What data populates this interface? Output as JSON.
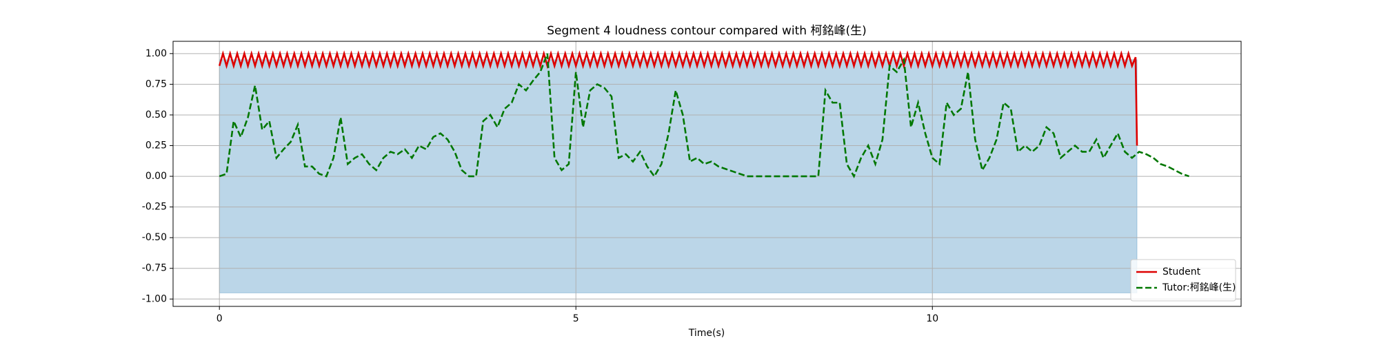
{
  "chart_data": {
    "type": "line",
    "title": "Segment 4 loudness contour compared with 柯銘峰(生)",
    "xlabel": "Time(s)",
    "xlim": [
      -0.65,
      14.33
    ],
    "ylim": [
      -1.06,
      1.1
    ],
    "xticks": [
      0,
      5,
      10
    ],
    "yticks": [
      {
        "value": -1,
        "label": "-1.00"
      },
      {
        "value": -0.75,
        "label": "-0.75"
      },
      {
        "value": -0.5,
        "label": "-0.50"
      },
      {
        "value": -0.25,
        "label": "-0.25"
      },
      {
        "value": 0,
        "label": "0.00"
      },
      {
        "value": 0.25,
        "label": "0.25"
      },
      {
        "value": 0.5,
        "label": "0.50"
      },
      {
        "value": 0.75,
        "label": "0.75"
      },
      {
        "value": 1,
        "label": "1.00"
      }
    ],
    "grid": true,
    "legend": "lower right",
    "waveform": {
      "color": "#1f77b4",
      "x": [
        0,
        12.87
      ],
      "upper": [
        0.95,
        0.95
      ],
      "lower": [
        -0.95,
        -0.95
      ]
    },
    "series": [
      {
        "name": "Student",
        "color": "#dd0000",
        "linestyle": "solid",
        "x": [
          0,
          0.05,
          0.1,
          0.15,
          0.2,
          0.25,
          0.3,
          0.35,
          0.4,
          0.45,
          0.5,
          0.55,
          0.6,
          0.65,
          0.7,
          0.75,
          0.8,
          0.85,
          0.9,
          0.95,
          1,
          1.05,
          1.1,
          1.15,
          1.2,
          1.25,
          1.3,
          1.35,
          1.4,
          1.45,
          1.5,
          1.55,
          1.6,
          1.65,
          1.7,
          1.75,
          1.8,
          1.85,
          1.9,
          1.95,
          2,
          2.05,
          2.1,
          2.15,
          2.2,
          2.25,
          2.3,
          2.35,
          2.4,
          2.45,
          2.5,
          2.55,
          2.6,
          2.65,
          2.7,
          2.75,
          2.8,
          2.85,
          2.9,
          2.95,
          3,
          3.05,
          3.1,
          3.15,
          3.2,
          3.25,
          3.3,
          3.35,
          3.4,
          3.45,
          3.5,
          3.55,
          3.6,
          3.65,
          3.7,
          3.75,
          3.8,
          3.85,
          3.9,
          3.95,
          4,
          4.05,
          4.1,
          4.15,
          4.2,
          4.25,
          4.3,
          4.35,
          4.4,
          4.45,
          4.5,
          4.55,
          4.6,
          4.65,
          4.7,
          4.75,
          4.8,
          4.85,
          4.9,
          4.95,
          5,
          5.05,
          5.1,
          5.15,
          5.2,
          5.25,
          5.3,
          5.35,
          5.4,
          5.45,
          5.5,
          5.55,
          5.6,
          5.65,
          5.7,
          5.75,
          5.8,
          5.85,
          5.9,
          5.95,
          6,
          6.05,
          6.1,
          6.15,
          6.2,
          6.25,
          6.3,
          6.35,
          6.4,
          6.45,
          6.5,
          6.55,
          6.6,
          6.65,
          6.7,
          6.75,
          6.8,
          6.85,
          6.9,
          6.95,
          7,
          7.05,
          7.1,
          7.15,
          7.2,
          7.25,
          7.3,
          7.35,
          7.4,
          7.45,
          7.5,
          7.55,
          7.6,
          7.65,
          7.7,
          7.75,
          7.8,
          7.85,
          7.9,
          7.95,
          8,
          8.05,
          8.1,
          8.15,
          8.2,
          8.25,
          8.3,
          8.35,
          8.4,
          8.45,
          8.5,
          8.55,
          8.6,
          8.65,
          8.7,
          8.75,
          8.8,
          8.85,
          8.9,
          8.95,
          9,
          9.05,
          9.1,
          9.15,
          9.2,
          9.25,
          9.3,
          9.35,
          9.4,
          9.45,
          9.5,
          9.55,
          9.6,
          9.65,
          9.7,
          9.75,
          9.8,
          9.85,
          9.9,
          9.95,
          10,
          10.05,
          10.1,
          10.15,
          10.2,
          10.25,
          10.3,
          10.35,
          10.4,
          10.45,
          10.5,
          10.55,
          10.6,
          10.65,
          10.7,
          10.75,
          10.8,
          10.85,
          10.9,
          10.95,
          11,
          11.05,
          11.1,
          11.15,
          11.2,
          11.25,
          11.3,
          11.35,
          11.4,
          11.45,
          11.5,
          11.55,
          11.6,
          11.65,
          11.7,
          11.75,
          11.8,
          11.85,
          11.9,
          11.95,
          12,
          12.05,
          12.1,
          12.15,
          12.2,
          12.25,
          12.3,
          12.35,
          12.4,
          12.45,
          12.5,
          12.55,
          12.6,
          12.65,
          12.7,
          12.75,
          12.8,
          12.85,
          12.87
        ],
        "values": [
          0.9,
          1,
          0.9,
          1,
          0.9,
          1,
          0.9,
          1,
          0.9,
          1,
          0.9,
          1,
          0.9,
          1,
          0.9,
          1,
          0.9,
          1,
          0.9,
          1,
          0.9,
          1,
          0.9,
          1,
          0.9,
          1,
          0.9,
          1,
          0.9,
          1,
          0.9,
          1,
          0.9,
          1,
          0.9,
          1,
          0.9,
          1,
          0.9,
          1,
          0.9,
          1,
          0.9,
          1,
          0.9,
          1,
          0.9,
          1,
          0.9,
          1,
          0.9,
          1,
          0.9,
          1,
          0.9,
          1,
          0.9,
          1,
          0.9,
          1,
          0.9,
          1,
          0.9,
          1,
          0.9,
          1,
          0.9,
          1,
          0.9,
          1,
          0.9,
          1,
          0.9,
          1,
          0.9,
          1,
          0.9,
          1,
          0.9,
          1,
          0.9,
          1,
          0.9,
          1,
          0.9,
          1,
          0.9,
          1,
          0.9,
          1,
          0.9,
          1,
          0.9,
          1,
          0.9,
          1,
          0.9,
          1,
          0.9,
          1,
          0.9,
          1,
          0.9,
          1,
          0.9,
          1,
          0.9,
          1,
          0.9,
          1,
          0.9,
          1,
          0.9,
          1,
          0.9,
          1,
          0.9,
          1,
          0.9,
          1,
          0.9,
          1,
          0.9,
          1,
          0.9,
          1,
          0.9,
          1,
          0.9,
          1,
          0.9,
          1,
          0.9,
          1,
          0.9,
          1,
          0.9,
          1,
          0.9,
          1,
          0.9,
          1,
          0.9,
          1,
          0.9,
          1,
          0.9,
          1,
          0.9,
          1,
          0.9,
          1,
          0.9,
          1,
          0.9,
          1,
          0.9,
          1,
          0.9,
          1,
          0.9,
          1,
          0.9,
          1,
          0.9,
          1,
          0.9,
          1,
          0.9,
          1,
          0.9,
          1,
          0.9,
          1,
          0.9,
          1,
          0.9,
          1,
          0.9,
          1,
          0.9,
          1,
          0.9,
          1,
          0.9,
          1,
          0.9,
          1,
          0.9,
          1,
          0.9,
          1,
          0.9,
          1,
          0.9,
          1,
          0.9,
          1,
          0.9,
          1,
          0.9,
          1,
          0.9,
          1,
          0.9,
          1,
          0.9,
          1,
          0.9,
          1,
          0.9,
          1,
          0.9,
          1,
          0.9,
          1,
          0.9,
          1,
          0.9,
          1,
          0.9,
          1,
          0.9,
          1,
          0.9,
          1,
          0.9,
          1,
          0.9,
          1,
          0.9,
          1,
          0.9,
          1,
          0.9,
          1,
          0.9,
          1,
          0.9,
          1,
          0.9,
          1,
          0.9,
          1,
          0.9,
          1,
          0.9,
          1,
          0.9,
          1,
          0.9,
          1,
          0.9,
          1,
          0.9,
          1,
          0.9,
          0.97,
          0.25
        ]
      },
      {
        "name": "Tutor:柯銘峰(生)",
        "color": "#007700",
        "linestyle": "dashed",
        "x": [
          0,
          0.1,
          0.2,
          0.3,
          0.4,
          0.5,
          0.6,
          0.7,
          0.8,
          0.9,
          1,
          1.1,
          1.2,
          1.3,
          1.4,
          1.5,
          1.6,
          1.7,
          1.8,
          1.9,
          2,
          2.1,
          2.2,
          2.3,
          2.4,
          2.5,
          2.6,
          2.7,
          2.8,
          2.9,
          3,
          3.1,
          3.2,
          3.3,
          3.4,
          3.5,
          3.6,
          3.7,
          3.8,
          3.9,
          4,
          4.1,
          4.2,
          4.3,
          4.4,
          4.5,
          4.6,
          4.7,
          4.8,
          4.9,
          5,
          5.1,
          5.2,
          5.3,
          5.4,
          5.5,
          5.6,
          5.7,
          5.8,
          5.9,
          6,
          6.1,
          6.2,
          6.3,
          6.4,
          6.5,
          6.6,
          6.7,
          6.8,
          6.9,
          7,
          7.1,
          7.2,
          7.3,
          7.4,
          7.5,
          7.6,
          7.7,
          7.8,
          7.9,
          8,
          8.1,
          8.2,
          8.3,
          8.4,
          8.5,
          8.6,
          8.7,
          8.8,
          8.9,
          9,
          9.1,
          9.2,
          9.3,
          9.4,
          9.5,
          9.6,
          9.7,
          9.8,
          9.9,
          10,
          10.1,
          10.2,
          10.3,
          10.4,
          10.5,
          10.6,
          10.7,
          10.8,
          10.9,
          11,
          11.1,
          11.2,
          11.3,
          11.4,
          11.5,
          11.6,
          11.7,
          11.8,
          11.9,
          12,
          12.1,
          12.2,
          12.3,
          12.4,
          12.5,
          12.6,
          12.7,
          12.8,
          12.9,
          13,
          13.1,
          13.2,
          13.3,
          13.4,
          13.5,
          13.6
        ],
        "values": [
          0,
          0.02,
          0.45,
          0.32,
          0.48,
          0.74,
          0.38,
          0.45,
          0.15,
          0.22,
          0.28,
          0.42,
          0.08,
          0.08,
          0.02,
          0,
          0.15,
          0.48,
          0.1,
          0.15,
          0.18,
          0.1,
          0.05,
          0.15,
          0.2,
          0.18,
          0.22,
          0.15,
          0.25,
          0.22,
          0.32,
          0.35,
          0.3,
          0.2,
          0.05,
          0,
          0,
          0.45,
          0.5,
          0.4,
          0.55,
          0.6,
          0.75,
          0.7,
          0.78,
          0.85,
          1,
          0.15,
          0.05,
          0.1,
          0.85,
          0.4,
          0.7,
          0.75,
          0.72,
          0.65,
          0.15,
          0.18,
          0.12,
          0.2,
          0.08,
          0,
          0.1,
          0.35,
          0.7,
          0.5,
          0.12,
          0.15,
          0.1,
          0.12,
          0.08,
          0.06,
          0.04,
          0.02,
          0,
          0,
          0,
          0,
          0,
          0,
          0,
          0,
          0,
          0,
          0,
          0.7,
          0.6,
          0.6,
          0.1,
          0,
          0.15,
          0.25,
          0.1,
          0.3,
          0.9,
          0.85,
          0.95,
          0.4,
          0.6,
          0.35,
          0.15,
          0.1,
          0.6,
          0.5,
          0.55,
          0.85,
          0.3,
          0.05,
          0.15,
          0.3,
          0.6,
          0.55,
          0.2,
          0.25,
          0.2,
          0.25,
          0.4,
          0.35,
          0.15,
          0.2,
          0.25,
          0.2,
          0.2,
          0.3,
          0.15,
          0.25,
          0.35,
          0.2,
          0.15,
          0.2,
          0.18,
          0.15,
          0.1,
          0.08,
          0.05,
          0.02,
          0
        ]
      }
    ]
  }
}
